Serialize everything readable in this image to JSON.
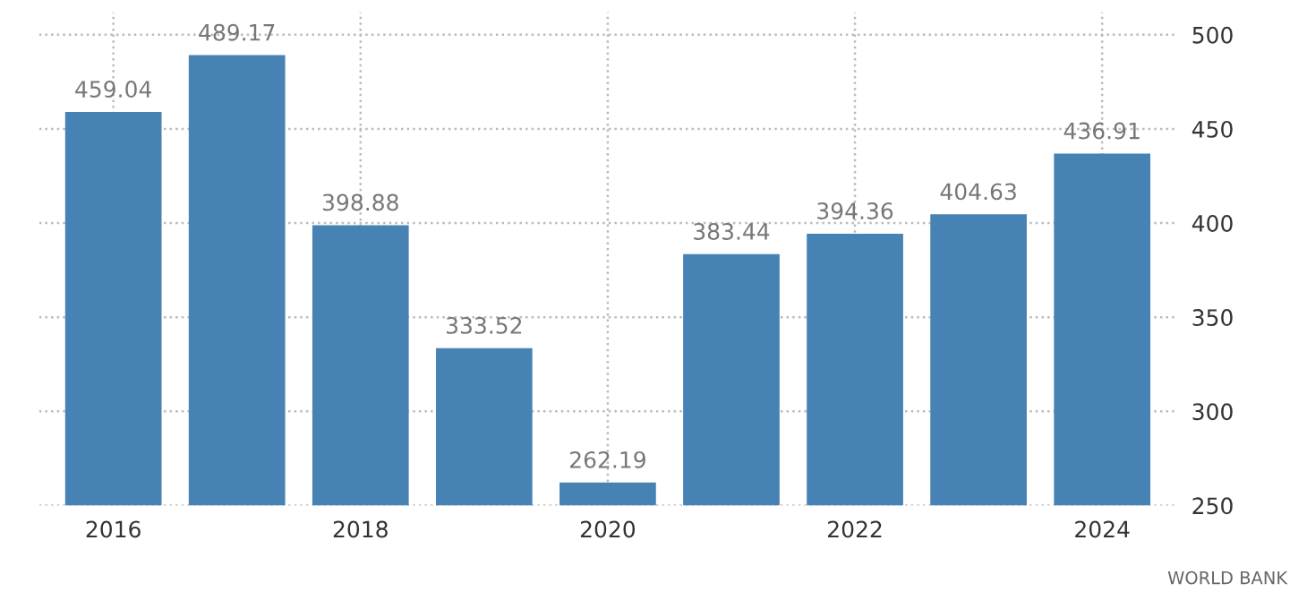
{
  "chart_data": {
    "type": "bar",
    "categories": [
      "2016",
      null,
      "2018",
      null,
      "2020",
      null,
      "2022",
      null,
      "2024"
    ],
    "values": [
      459.04,
      489.17,
      398.88,
      333.52,
      262.19,
      383.44,
      394.36,
      404.63,
      436.91
    ],
    "color": "#4682b4",
    "ylim": [
      250,
      512
    ],
    "yticks": [
      250,
      300,
      350,
      400,
      450,
      500
    ],
    "grid": true,
    "data_labels": true,
    "annotations": [
      "WORLD BANK"
    ]
  }
}
